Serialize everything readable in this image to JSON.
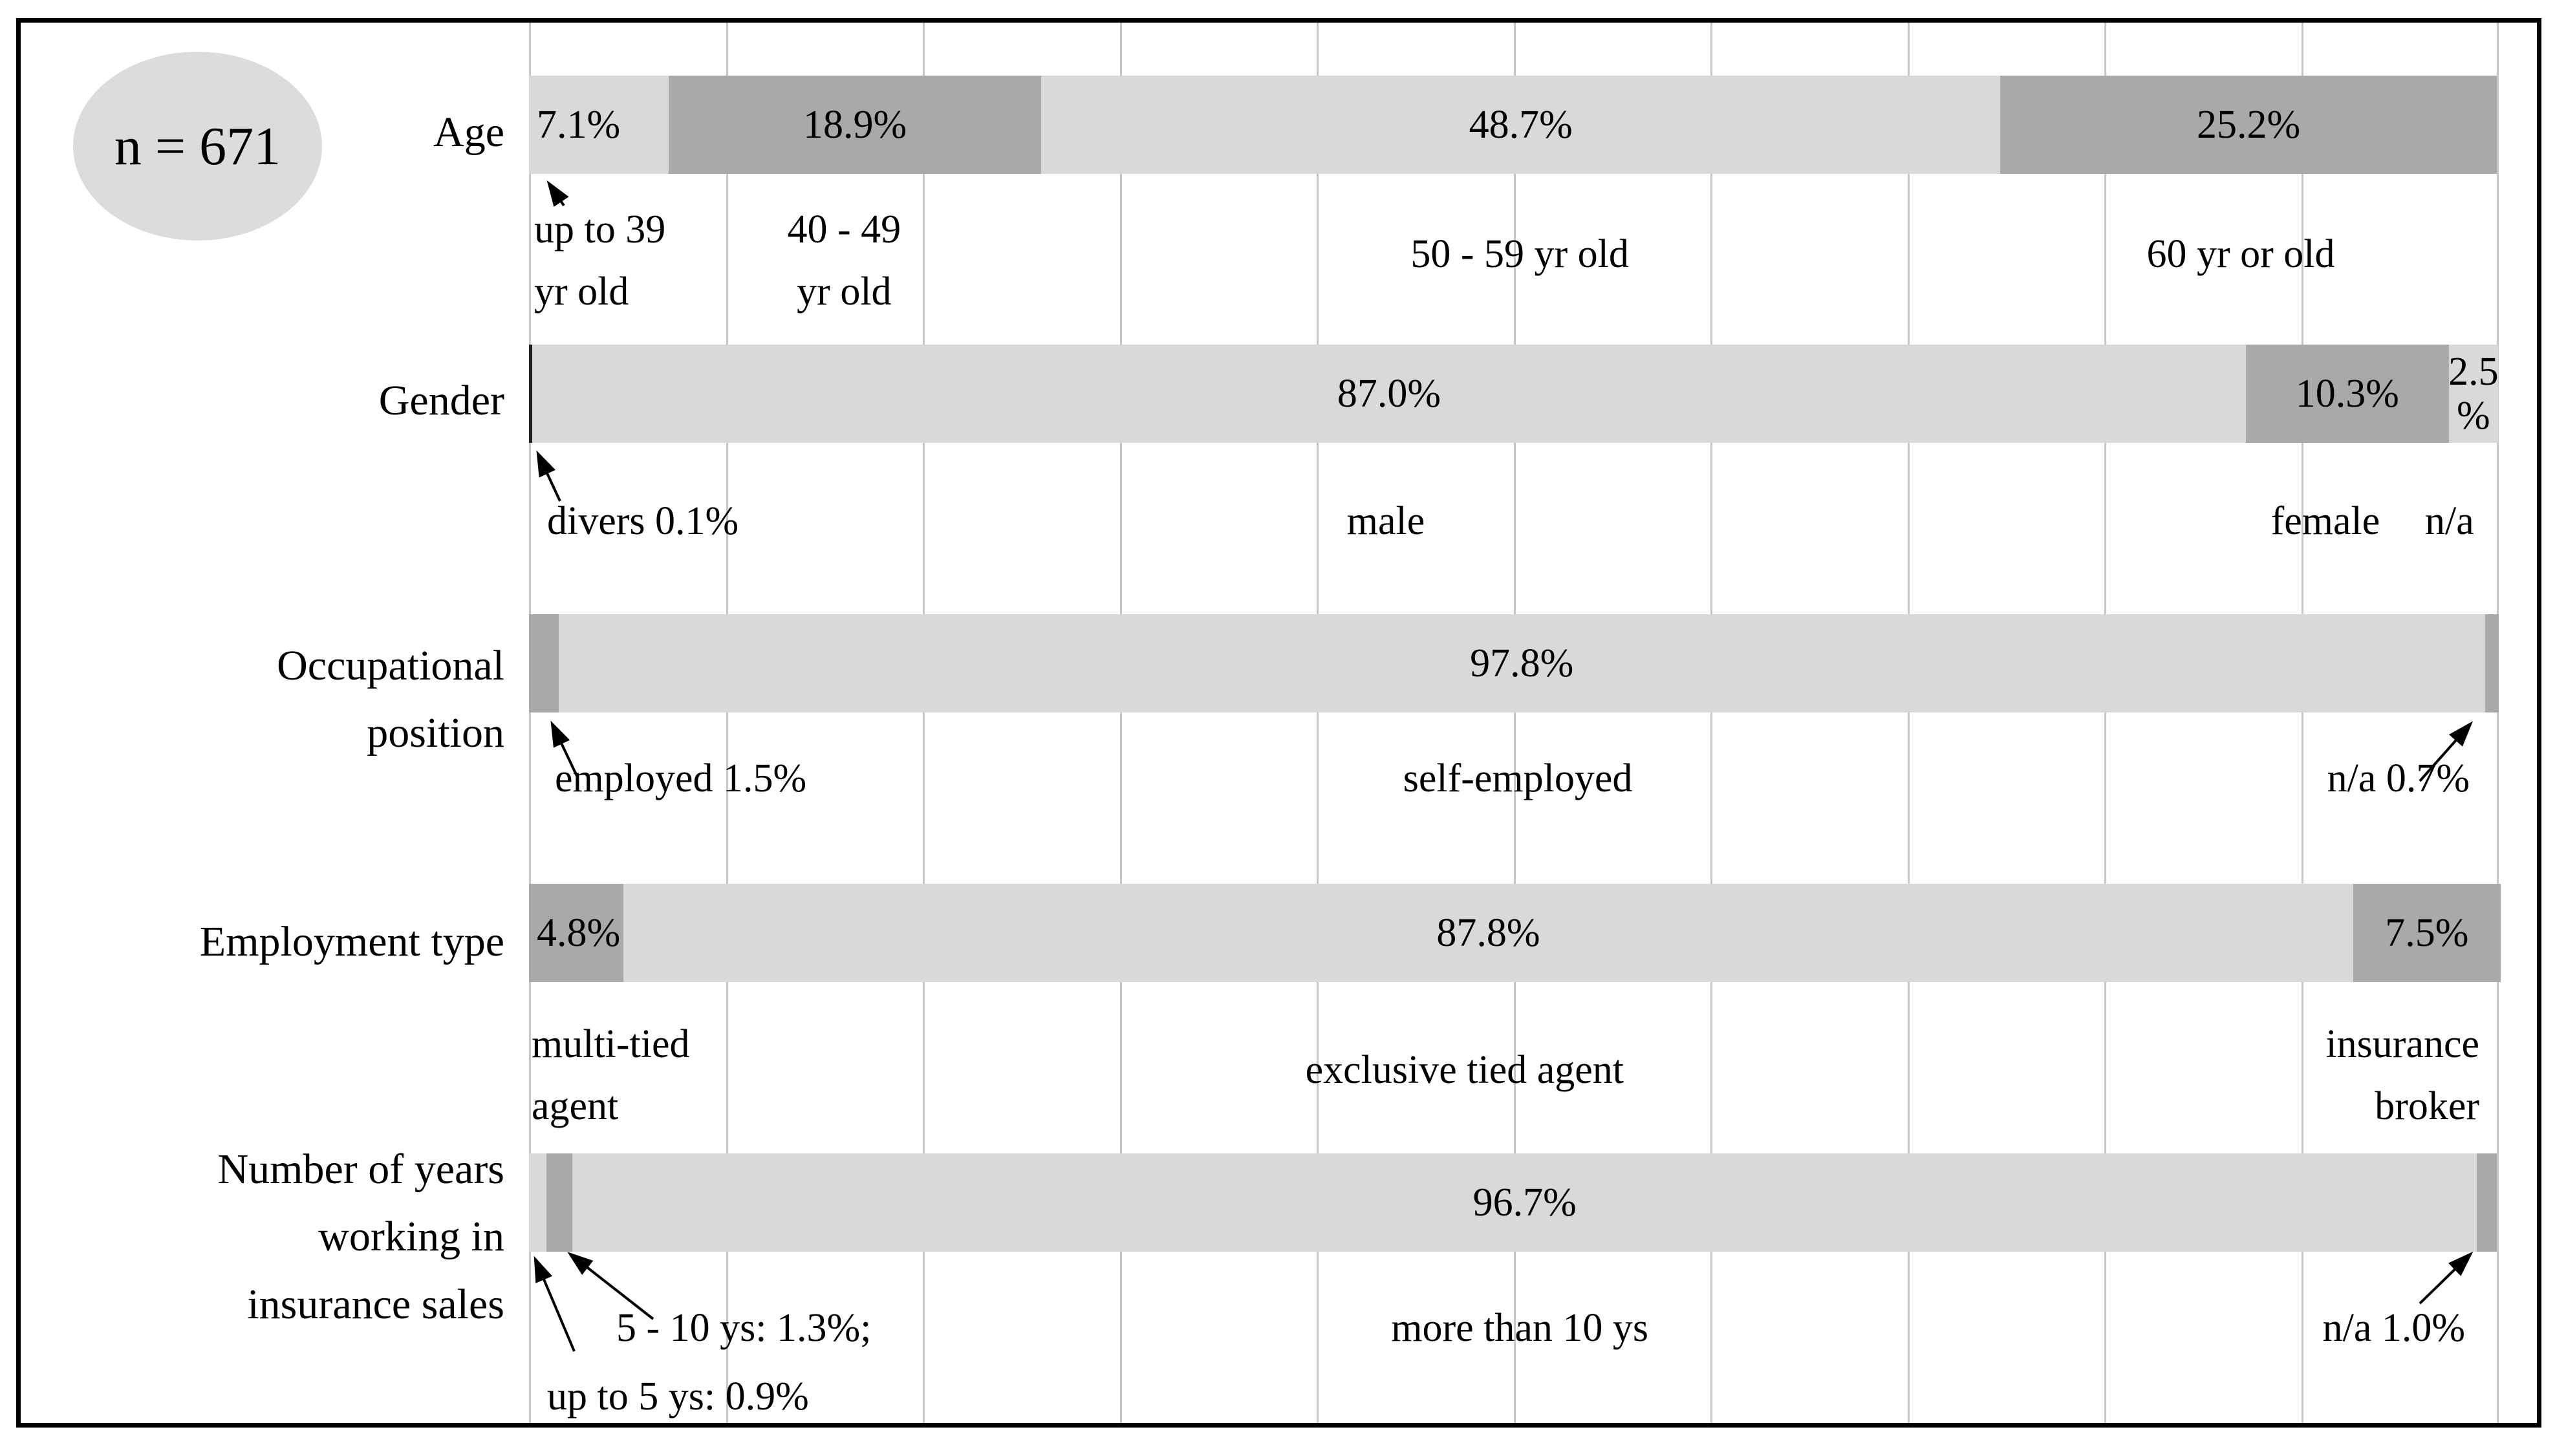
{
  "chart_data": {
    "type": "bar",
    "subtype": "stacked-horizontal-100pct",
    "title": "",
    "n_annotation": "n = 671",
    "xlabel": "",
    "ylabel": "",
    "x_range_percent": [
      0,
      100
    ],
    "gridlines_percent": [
      0,
      10,
      20,
      30,
      40,
      50,
      60,
      70,
      80,
      90,
      100
    ],
    "grid": "vertical-only",
    "legend": "none (segments labeled beneath bars)",
    "palette": {
      "light_segment": "#d9d9d9",
      "dark_segment": "#a9a9a9",
      "near_black_segment": "#1f1f1f",
      "gridline": "#c7c7c7",
      "frame": "#000000",
      "ellipse_fill": "#dcdcdc"
    },
    "categories": [
      "Age",
      "Gender",
      "Occupational position",
      "Employment type",
      "Number of years working in insurance sales"
    ],
    "rows": [
      {
        "category": "Age",
        "category_label": "Age",
        "segments": [
          {
            "label": "up to 39 yr old",
            "value": 7.1,
            "value_label": "7.1%",
            "shade": "light",
            "caption": "up to 39\nyr old"
          },
          {
            "label": "40 - 49 yr old",
            "value": 18.9,
            "value_label": "18.9%",
            "shade": "dark",
            "caption": "40 - 49\nyr old"
          },
          {
            "label": "50 - 59 yr old",
            "value": 48.7,
            "value_label": "48.7%",
            "shade": "light",
            "caption": "50 - 59 yr old"
          },
          {
            "label": "60 yr or old",
            "value": 25.2,
            "value_label": "25.2%",
            "shade": "dark",
            "caption": "60 yr or old"
          }
        ]
      },
      {
        "category": "Gender",
        "category_label": "Gender",
        "segments": [
          {
            "label": "divers",
            "value": 0.1,
            "value_label": "",
            "shade": "black",
            "caption": "divers 0.1%"
          },
          {
            "label": "male",
            "value": 87.0,
            "value_label": "87.0%",
            "shade": "light",
            "caption": "male"
          },
          {
            "label": "female",
            "value": 10.3,
            "value_label": "10.3%",
            "shade": "dark",
            "caption": "female"
          },
          {
            "label": "n/a",
            "value": 2.5,
            "value_label": "2.5\n%",
            "shade": "light",
            "caption": "n/a"
          }
        ]
      },
      {
        "category": "Occupational position",
        "category_label": "Occupational\nposition",
        "segments": [
          {
            "label": "employed",
            "value": 1.5,
            "value_label": "",
            "shade": "dark",
            "caption": "employed 1.5%"
          },
          {
            "label": "self-employed",
            "value": 97.8,
            "value_label": "97.8%",
            "shade": "light",
            "caption": "self-employed"
          },
          {
            "label": "n/a",
            "value": 0.7,
            "value_label": "",
            "shade": "dark",
            "caption": "n/a 0.7%"
          }
        ]
      },
      {
        "category": "Employment type",
        "category_label": "Employment type",
        "segments": [
          {
            "label": "multi-tied agent",
            "value": 4.8,
            "value_label": "4.8%",
            "shade": "dark",
            "caption": "multi-tied\nagent"
          },
          {
            "label": "exclusive tied agent",
            "value": 87.8,
            "value_label": "87.8%",
            "shade": "light",
            "caption": "exclusive tied agent"
          },
          {
            "label": "insurance broker",
            "value": 7.5,
            "value_label": "7.5%",
            "shade": "dark",
            "caption": "insurance\nbroker"
          }
        ]
      },
      {
        "category": "Number of years working in insurance sales",
        "category_label": "Number of years\nworking in\ninsurance sales",
        "segments": [
          {
            "label": "up to 5 ys",
            "value": 0.9,
            "value_label": "",
            "shade": "light",
            "caption": "up to 5 ys: 0.9%"
          },
          {
            "label": "5 - 10 ys",
            "value": 1.3,
            "value_label": "",
            "shade": "dark",
            "caption": "5 - 10 ys: 1.3%;"
          },
          {
            "label": "more than 10 ys",
            "value": 96.7,
            "value_label": "96.7%",
            "shade": "light",
            "caption": "more than 10 ys"
          },
          {
            "label": "n/a",
            "value": 1.0,
            "value_label": "",
            "shade": "dark",
            "caption": "n/a 1.0%"
          }
        ]
      }
    ]
  }
}
